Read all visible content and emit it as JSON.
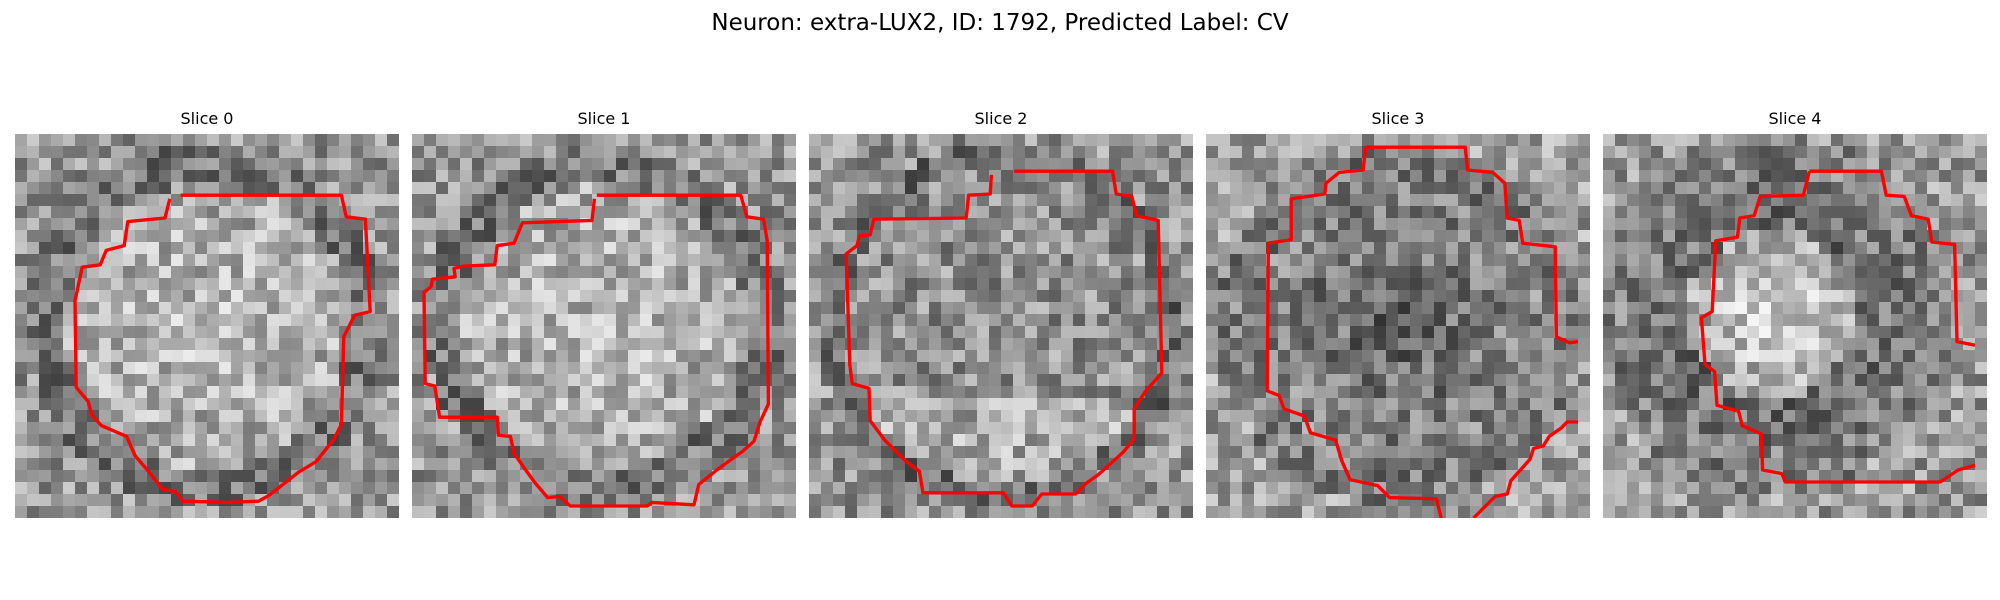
{
  "figure": {
    "title": "Neuron: extra-LUX2, ID: 1792, Predicted Label: CV",
    "contour_color": "#ff0000"
  },
  "slices": [
    {
      "title": "Slice 0",
      "brightness": "bright-center"
    },
    {
      "title": "Slice 1",
      "brightness": "bright-center"
    },
    {
      "title": "Slice 2",
      "brightness": "mixed"
    },
    {
      "title": "Slice 3",
      "brightness": "dark-center"
    },
    {
      "title": "Slice 4",
      "brightness": "bright-left-center"
    }
  ]
}
